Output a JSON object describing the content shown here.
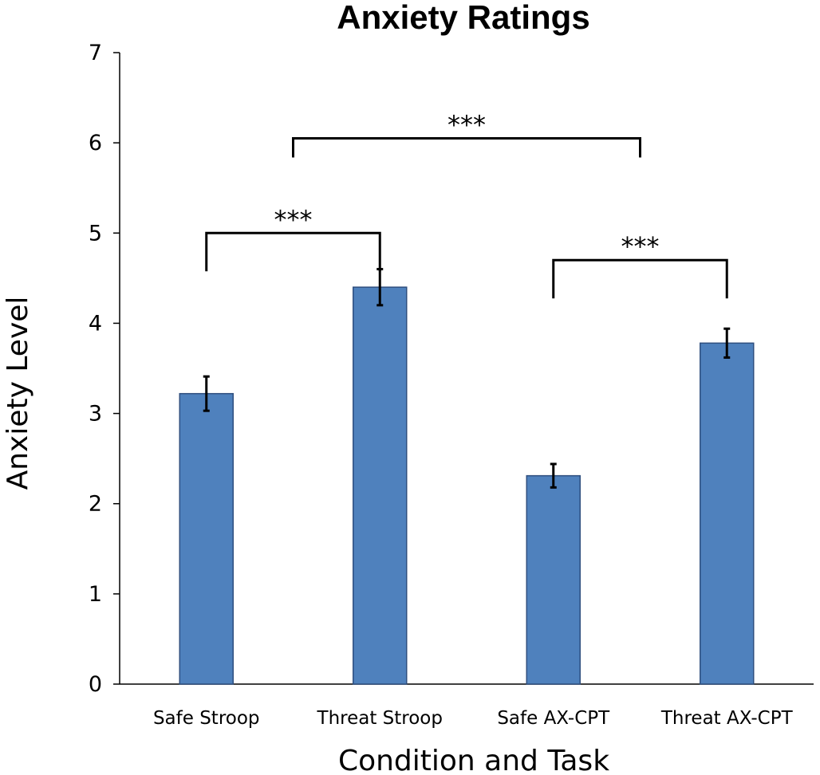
{
  "chart_data": {
    "type": "bar",
    "title": "Anxiety Ratings",
    "xlabel": "Condition and Task",
    "ylabel": "Anxiety Level",
    "categories": [
      "Safe Stroop",
      "Threat Stroop",
      "Safe AX-CPT",
      "Threat AX-CPT"
    ],
    "values": [
      3.22,
      4.4,
      2.31,
      3.78
    ],
    "error": [
      0.19,
      0.2,
      0.13,
      0.16
    ],
    "ylim": [
      0,
      7
    ],
    "yticks": [
      0,
      1,
      2,
      3,
      4,
      5,
      6,
      7
    ],
    "bar_color": "#4f81bd",
    "significance": [
      {
        "from": 0,
        "to": 1,
        "label": "***",
        "level": 5.0
      },
      {
        "from": 0.5,
        "to": 2.5,
        "label": "***",
        "level": 6.05
      },
      {
        "from": 2,
        "to": 3,
        "label": "***",
        "level": 4.7
      }
    ]
  }
}
